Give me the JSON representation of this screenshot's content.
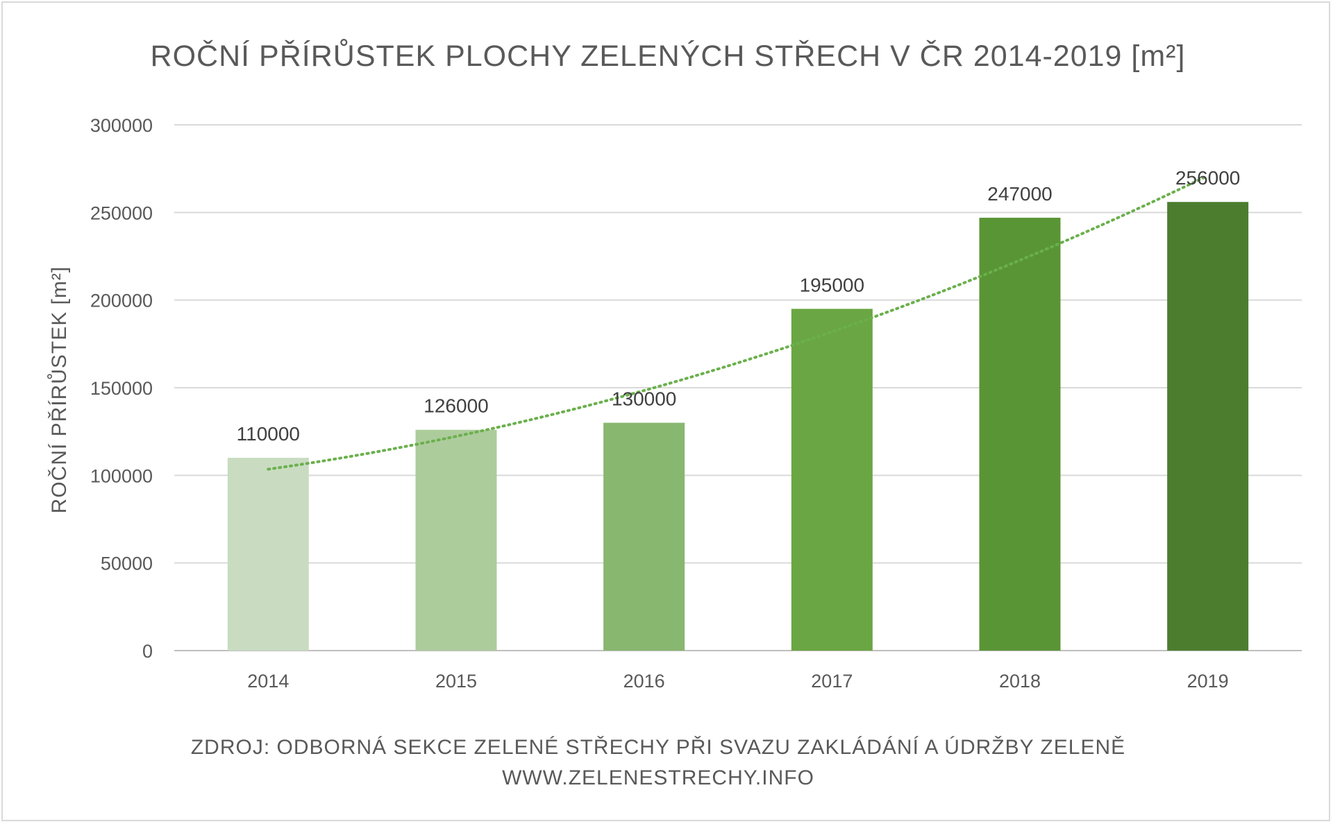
{
  "chart_data": {
    "type": "bar",
    "title": "ROČNÍ PŘÍRŮSTEK PLOCHY ZELENÝCH STŘECH V ČR 2014-2019 [m²]",
    "xlabel": "",
    "ylabel": "ROČNÍ PŘÍRŮSTEK [m²]",
    "categories": [
      "2014",
      "2015",
      "2016",
      "2017",
      "2018",
      "2019"
    ],
    "series": [
      {
        "values": [
          110000,
          126000,
          130000,
          195000,
          247000,
          256000
        ],
        "colors": [
          "#c9dcc1",
          "#adcc9c",
          "#88b770",
          "#6aa643",
          "#5a9535",
          "#4c7d2f"
        ],
        "data_labels": [
          "110000",
          "126000",
          "130000",
          "195000",
          "247000",
          "256000"
        ]
      }
    ],
    "trendline": {
      "type": "polynomial",
      "style": "dotted",
      "color": "#6ab04c",
      "start": 103500,
      "end": 271000
    },
    "ylim": [
      0,
      300000
    ],
    "yticks": [
      "0",
      "50000",
      "100000",
      "150000",
      "200000",
      "250000",
      "300000"
    ],
    "grid": true,
    "legend": "none",
    "source_lines": [
      "ZDROJ: ODBORNÁ SEKCE ZELENÉ STŘECHY PŘI SVAZU ZAKLÁDÁNÍ A ÚDRŽBY ZELENĚ",
      "WWW.ZELENESTRECHY.INFO"
    ]
  }
}
